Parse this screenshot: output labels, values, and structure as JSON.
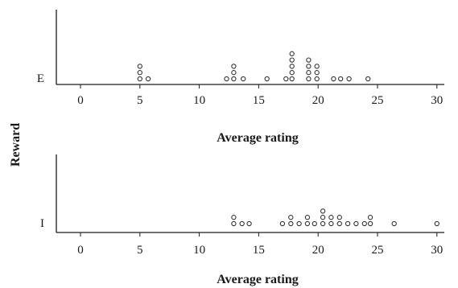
{
  "chart_data": {
    "type": "scatter",
    "subtype": "dot-plot",
    "y_axis_title": "Reward",
    "panels": [
      {
        "group": "E",
        "xlabel": "Average rating",
        "xlim": [
          -2.5,
          31.5
        ],
        "xticks": [
          0,
          5,
          10,
          15,
          20,
          25,
          30
        ],
        "values": [
          5.0,
          5.0,
          5.0,
          5.7,
          12.3,
          12.9,
          12.9,
          12.9,
          13.7,
          15.7,
          17.3,
          17.8,
          17.8,
          17.8,
          17.8,
          17.8,
          19.2,
          19.2,
          19.2,
          19.2,
          19.9,
          19.9,
          20.0,
          21.3,
          21.9,
          22.6,
          24.2
        ]
      },
      {
        "group": "I",
        "xlabel": "Average rating",
        "xlim": [
          -2.5,
          31.5
        ],
        "xticks": [
          0,
          5,
          10,
          15,
          20,
          25,
          30
        ],
        "values": [
          12.9,
          12.9,
          13.6,
          14.2,
          17.0,
          17.7,
          17.7,
          18.4,
          19.1,
          19.1,
          19.7,
          20.4,
          20.4,
          20.6,
          21.1,
          21.1,
          21.8,
          21.8,
          22.5,
          23.2,
          23.9,
          24.4,
          24.4,
          26.4,
          30.0
        ]
      }
    ]
  }
}
